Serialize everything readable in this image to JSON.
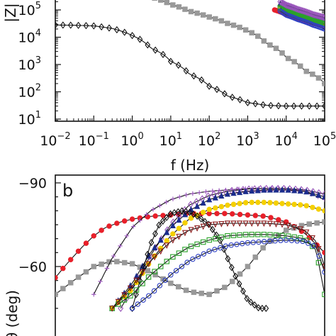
{
  "chart_data": [
    {
      "type": "scatter",
      "panel_label": "",
      "xlabel": "f (Hz)",
      "ylabel": "|Z|",
      "x_scale": "log",
      "y_scale": "log",
      "xlim": [
        0.01,
        100000
      ],
      "ylim": [
        10,
        1000000
      ],
      "x_ticks": [
        {
          "label": "10",
          "sup": "−2"
        },
        {
          "label": "10",
          "sup": "−1"
        },
        {
          "label": "10",
          "sup": "0"
        },
        {
          "label": "10",
          "sup": "1"
        },
        {
          "label": "10",
          "sup": "2"
        },
        {
          "label": "10",
          "sup": "3"
        },
        {
          "label": "10",
          "sup": "4"
        },
        {
          "label": "10",
          "sup": "5"
        }
      ],
      "y_ticks": [
        {
          "label": "10",
          "sup": "1"
        },
        {
          "label": "10",
          "sup": "2"
        },
        {
          "label": "10",
          "sup": "3"
        },
        {
          "label": "10",
          "sup": "4"
        },
        {
          "label": "10",
          "sup": "5"
        }
      ],
      "series": [
        {
          "color": "#111111",
          "marker": "diamond-open",
          "x": [
            0.01,
            0.03,
            0.1,
            0.3,
            1,
            3,
            10,
            30,
            100,
            300,
            1000,
            3000,
            10000,
            30000,
            100000
          ],
          "y": [
            28000,
            27500,
            26000,
            21000,
            11500,
            4000,
            1300,
            450,
            160,
            70,
            40,
            32,
            30,
            30,
            30
          ]
        },
        {
          "color": "#999999",
          "marker": "square",
          "x": [
            0.3,
            1,
            3,
            10,
            30,
            100,
            300,
            1000,
            3000,
            10000,
            30000,
            100000
          ],
          "y": [
            1100000,
            600000,
            300000,
            160000,
            90000,
            55000,
            32000,
            17000,
            6000,
            1800,
            600,
            200
          ]
        },
        {
          "color": "#e8202a",
          "marker": "circle",
          "x": [
            5000,
            10000,
            20000,
            50000,
            100000
          ],
          "y": [
            100000,
            70000,
            50000,
            33000,
            25000
          ]
        },
        {
          "color": "#f5d000",
          "marker": "circle",
          "x": [
            7000,
            10000,
            20000,
            50000,
            100000
          ],
          "y": [
            140000,
            110000,
            75000,
            48000,
            36000
          ]
        },
        {
          "color": "#1b2c8c",
          "marker": "triangle",
          "x": [
            7000,
            10000,
            20000,
            50000,
            100000
          ],
          "y": [
            170000,
            130000,
            88000,
            56000,
            42000
          ]
        },
        {
          "color": "#2aa32a",
          "marker": "square-open",
          "x": [
            7000,
            10000,
            20000,
            50000,
            100000
          ],
          "y": [
            120000,
            90000,
            62000,
            40000,
            30000
          ]
        },
        {
          "color": "#2d3fc4",
          "marker": "circle-open",
          "x": [
            7000,
            10000,
            20000,
            50000,
            100000
          ],
          "y": [
            90000,
            65000,
            45000,
            28000,
            20000
          ]
        },
        {
          "color": "#9955bb",
          "marker": "diamond-open",
          "x": [
            7000,
            10000,
            20000,
            50000,
            100000
          ],
          "y": [
            200000,
            150000,
            105000,
            68000,
            52000
          ]
        }
      ]
    },
    {
      "type": "scatter",
      "panel_label": "b",
      "xlabel": "",
      "ylabel": "θ (deg)",
      "x_scale": "log",
      "y_scale": "linear",
      "xlim": [
        0.01,
        100000
      ],
      "ylim": [
        -90,
        -45
      ],
      "y_ticks": [
        {
          "value": -90,
          "label": "−90"
        },
        {
          "value": -60,
          "label": "−60"
        }
      ],
      "series": [
        {
          "color": "#e8202a",
          "marker": "circle",
          "x": [
            0.01,
            0.02,
            0.05,
            0.1,
            0.2,
            0.5,
            1,
            3,
            10,
            30,
            100,
            300,
            1000,
            3000,
            10000,
            30000,
            100000
          ],
          "y": [
            -56,
            -61,
            -67,
            -71,
            -74,
            -76,
            -77,
            -78,
            -78.5,
            -79,
            -79,
            -79,
            -78.5,
            -78,
            -76,
            -72,
            -65
          ]
        },
        {
          "color": "#999999",
          "marker": "square",
          "x": [
            0.01,
            0.03,
            0.1,
            0.3,
            1,
            3,
            10,
            30,
            100,
            300,
            1000,
            3000,
            10000,
            30000,
            100000
          ],
          "y": [
            -50,
            -55,
            -60,
            -62,
            -61,
            -58,
            -54,
            -51,
            -50,
            -53,
            -60,
            -68,
            -73,
            -75,
            -76
          ]
        },
        {
          "color": "#9955bb",
          "marker": "cross",
          "x": [
            0.1,
            0.3,
            1,
            3,
            10,
            30,
            100,
            300,
            1000,
            3000,
            10000,
            30000,
            100000
          ],
          "y": [
            -50,
            -63,
            -74,
            -80,
            -84,
            -86,
            -87,
            -87.5,
            -88,
            -88,
            -88,
            -87,
            -84
          ]
        },
        {
          "color": "#9955bb",
          "marker": "diamond-open",
          "x": [
            0.5,
            1,
            3,
            10,
            30,
            100,
            300,
            1000,
            3000,
            10000,
            30000,
            100000
          ],
          "y": [
            -45,
            -52,
            -64,
            -75,
            -82,
            -85.5,
            -87,
            -87.8,
            -88,
            -88,
            -87.5,
            -86
          ]
        },
        {
          "color": "#1b2c8c",
          "marker": "triangle",
          "x": [
            0.3,
            1,
            3,
            10,
            30,
            100,
            300,
            1000,
            3000,
            10000,
            30000,
            100000
          ],
          "y": [
            -45,
            -54,
            -65,
            -74,
            -80,
            -84,
            -86,
            -87,
            -87.5,
            -87.5,
            -87,
            -85
          ]
        },
        {
          "color": "#f5d000",
          "marker": "circle",
          "x": [
            0.3,
            1,
            3,
            10,
            30,
            100,
            300,
            1000,
            3000,
            10000,
            30000,
            100000
          ],
          "y": [
            -45,
            -52,
            -62,
            -71,
            -77,
            -80.5,
            -82,
            -83,
            -83,
            -82.5,
            -82,
            -80
          ]
        },
        {
          "color": "#111111",
          "marker": "diamond-open",
          "x": [
            1,
            2,
            3,
            5,
            10,
            20,
            30,
            50,
            100,
            200,
            300,
            500,
            1000,
            2000,
            3000
          ],
          "y": [
            -45,
            -60,
            -68,
            -75,
            -79,
            -80,
            -79.5,
            -78,
            -75,
            -69,
            -63,
            -56,
            -48,
            -45,
            -45
          ]
        },
        {
          "color": "#2aa32a",
          "marker": "square-open",
          "x": [
            0.3,
            1,
            3,
            10,
            30,
            100,
            300,
            1000,
            3000,
            10000,
            30000,
            60000,
            100000
          ],
          "y": [
            -45,
            -50,
            -57,
            -63,
            -67,
            -69.5,
            -71,
            -71.5,
            -71.5,
            -71,
            -70,
            -66,
            -50
          ]
        },
        {
          "color": "#8b1a1a",
          "marker": "triangle-down-open",
          "x": [
            0.3,
            1,
            3,
            10,
            30,
            100,
            300,
            1000,
            3000,
            10000,
            30000,
            60000,
            100000
          ],
          "y": [
            -45,
            -53,
            -62,
            -69,
            -73,
            -75,
            -75.5,
            -75.5,
            -75.5,
            -75,
            -73,
            -69,
            -60
          ]
        },
        {
          "color": "#2d3fc4",
          "marker": "circle-open",
          "x": [
            1,
            3,
            10,
            30,
            100,
            300,
            1000,
            3000,
            10000,
            30000,
            60000,
            100000
          ],
          "y": [
            -45,
            -50,
            -57,
            -62,
            -65.5,
            -67.5,
            -68.5,
            -69,
            -69.5,
            -69,
            -67,
            -58
          ]
        }
      ]
    }
  ]
}
